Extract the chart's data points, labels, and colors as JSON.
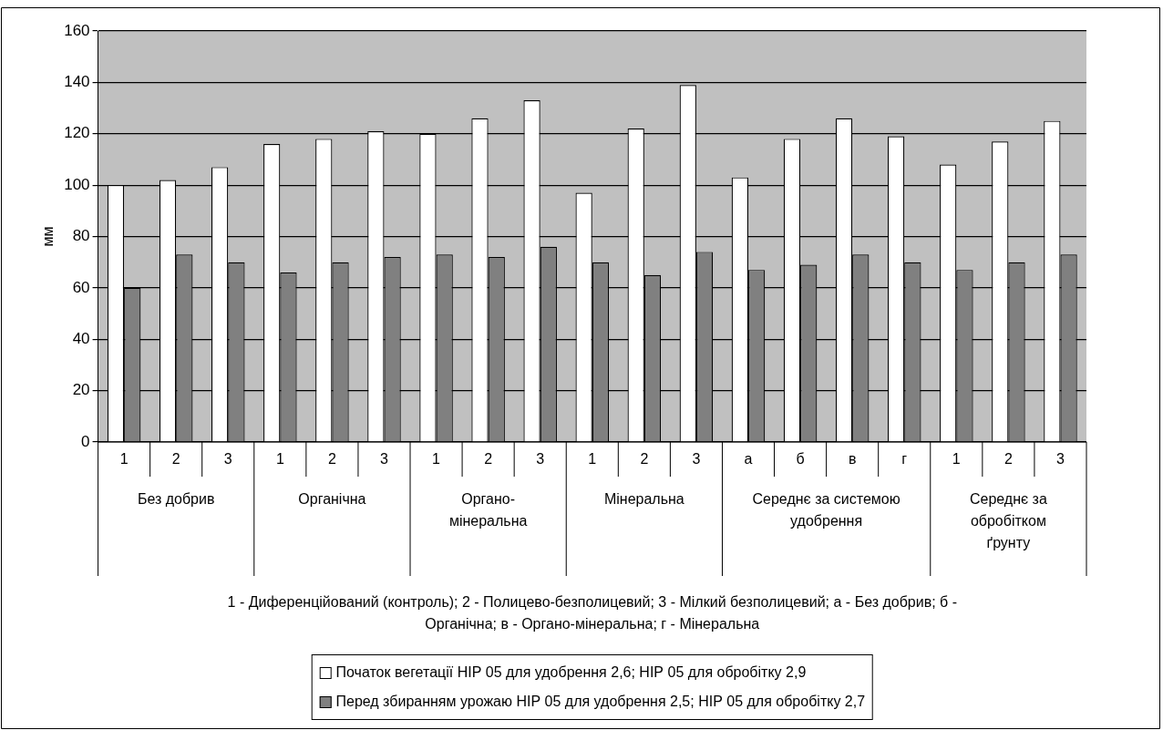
{
  "chart_data": {
    "type": "bar",
    "ylabel": "мм",
    "categories": [
      "1",
      "2",
      "3",
      "1",
      "2",
      "3",
      "1",
      "2",
      "3",
      "1",
      "2",
      "3",
      "а",
      "б",
      "в",
      "г",
      "1",
      "2",
      "3"
    ],
    "annotations": [
      "Без добрив",
      "Органічна",
      "Органо-мінеральна",
      "Мінеральна",
      "Середнє за системою удобрення",
      "Середнє за обробітком ґрунту",
      "1 - Диференційований (контроль); 2 - Полицево-безполицевий; 3 - Мілкий безполицевий; а - Без добрив; б - Органічна; в - Органо-мінеральна; г - Мінеральна"
    ],
    "series": [
      {
        "name": "Початок вегетації НІР 05 для удобрення 2,6; НІР 05 для обробітку 2,9",
        "color": "#ffffff",
        "values": [
          100,
          102,
          107,
          116,
          118,
          121,
          120,
          126,
          133,
          97,
          122,
          139,
          103,
          118,
          126,
          119,
          108,
          117,
          125
        ]
      },
      {
        "name": "Перед збиранням урожаю НІР 05 для удобрення 2,5; НІР 05 для обробітку 2,7",
        "color": "#808080",
        "values": [
          60,
          73,
          70,
          66,
          70,
          72,
          73,
          72,
          76,
          70,
          65,
          74,
          67,
          69,
          73,
          70,
          67,
          70,
          73
        ]
      }
    ],
    "ylim": [
      0,
      160
    ],
    "yticks": [
      0,
      20,
      40,
      60,
      80,
      100,
      120,
      140,
      160
    ],
    "grid": "y",
    "legend": "bottom"
  }
}
